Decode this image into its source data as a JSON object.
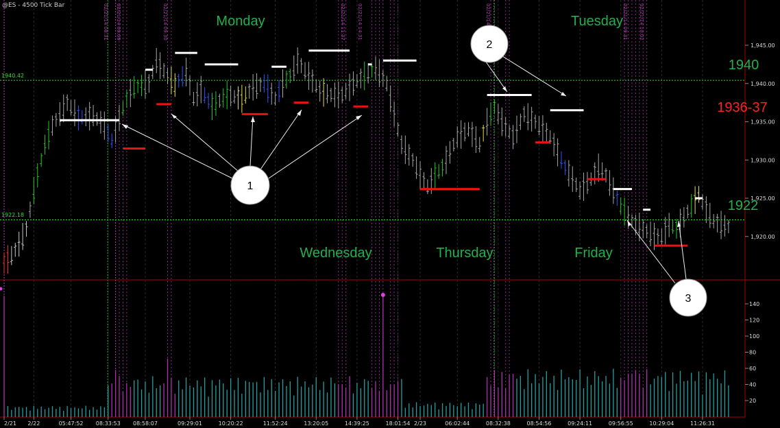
{
  "chart_data": {
    "type": "ohlc",
    "title": "@ES - 4500 Tick Bar",
    "price_axis": {
      "min": 1915,
      "max": 1950,
      "ticks": [
        "1,945.00",
        "1,940.00",
        "1,935.00",
        "1,930.00",
        "1,925.00",
        "1,920.00"
      ],
      "tick_values": [
        1945,
        1940,
        1935,
        1930,
        1925,
        1920
      ]
    },
    "volume_axis": {
      "min": 0,
      "max": 150,
      "ticks": [
        "140",
        "120",
        "100",
        "80",
        "60",
        "40",
        "20"
      ],
      "tick_values": [
        140,
        120,
        100,
        80,
        60,
        40,
        20
      ]
    },
    "x_ticks": [
      {
        "label": "2/21",
        "bar": 0
      },
      {
        "label": "2/22",
        "bar": 8
      },
      {
        "label": "05:47:52",
        "bar": 18
      },
      {
        "label": "08:33:53",
        "bar": 28
      },
      {
        "label": "08:58:07",
        "bar": 38
      },
      {
        "label": "09:29:01",
        "bar": 50
      },
      {
        "label": "10:20:22",
        "bar": 61
      },
      {
        "label": "11:52:24",
        "bar": 73
      },
      {
        "label": "13:20:05",
        "bar": 84
      },
      {
        "label": "14:39:25",
        "bar": 95
      },
      {
        "label": "18:01:54",
        "bar": 106
      },
      {
        "label": "2/23",
        "bar": 112
      },
      {
        "label": "06:02:44",
        "bar": 122
      },
      {
        "label": "08:32:38",
        "bar": 133
      },
      {
        "label": "08:54:56",
        "bar": 144
      },
      {
        "label": "09:24:11",
        "bar": 155
      },
      {
        "label": "09:56:55",
        "bar": 166
      },
      {
        "label": "10:29:04",
        "bar": 177
      },
      {
        "label": "11:26:31",
        "bar": 188
      }
    ],
    "reference_lines": [
      {
        "label": "1940.42",
        "value": 1940.42,
        "color": "#33dd33"
      },
      {
        "label": "1922.18",
        "value": 1922.18,
        "color": "#33dd33"
      }
    ],
    "right_labels": [
      {
        "text": "1940",
        "color": "#22b14c"
      },
      {
        "text": "1936-37",
        "color": "#ff2020"
      },
      {
        "text": "1922",
        "color": "#22b14c"
      }
    ],
    "day_labels": [
      "Monday",
      "Tuesday",
      "Wednesday",
      "Thursday",
      "Friday"
    ],
    "callouts": [
      "1",
      "2",
      "3"
    ],
    "resistance_levels": [
      {
        "from_bar": 15,
        "to_bar": 31,
        "value": 1935.2
      },
      {
        "from_bar": 38,
        "to_bar": 40,
        "value": 1941.8
      },
      {
        "from_bar": 46,
        "to_bar": 52,
        "value": 1944.0
      },
      {
        "from_bar": 54,
        "to_bar": 63,
        "value": 1942.5
      },
      {
        "from_bar": 72,
        "to_bar": 76,
        "value": 1942.2
      },
      {
        "from_bar": 82,
        "to_bar": 93,
        "value": 1944.3
      },
      {
        "from_bar": 98,
        "to_bar": 99,
        "value": 1942.5
      },
      {
        "from_bar": 102,
        "to_bar": 111,
        "value": 1943.0
      },
      {
        "from_bar": 130,
        "to_bar": 142,
        "value": 1938.5
      },
      {
        "from_bar": 147,
        "to_bar": 156,
        "value": 1936.5
      },
      {
        "from_bar": 164,
        "to_bar": 169,
        "value": 1926.2
      },
      {
        "from_bar": 172,
        "to_bar": 174,
        "value": 1923.5
      },
      {
        "from_bar": 186,
        "to_bar": 188,
        "value": 1925.0
      }
    ],
    "support_levels": [
      {
        "from_bar": 32,
        "to_bar": 38,
        "value": 1931.5
      },
      {
        "from_bar": 41,
        "to_bar": 45,
        "value": 1937.3
      },
      {
        "from_bar": 64,
        "to_bar": 71,
        "value": 1936.0
      },
      {
        "from_bar": 78,
        "to_bar": 82,
        "value": 1937.5
      },
      {
        "from_bar": 94,
        "to_bar": 98,
        "value": 1937.0
      },
      {
        "from_bar": 112,
        "to_bar": 128,
        "value": 1926.2
      },
      {
        "from_bar": 143,
        "to_bar": 147,
        "value": 1932.3
      },
      {
        "from_bar": 157,
        "to_bar": 162,
        "value": 1927.5
      },
      {
        "from_bar": 175,
        "to_bar": 184,
        "value": 1918.8
      }
    ],
    "volume_spikes": [
      {
        "bar": 0,
        "value": 150
      },
      {
        "bar": 30,
        "value": 58
      },
      {
        "bar": 44,
        "value": 72
      },
      {
        "bar": 102,
        "value": 150
      },
      {
        "bar": 170,
        "value": 58
      }
    ]
  }
}
